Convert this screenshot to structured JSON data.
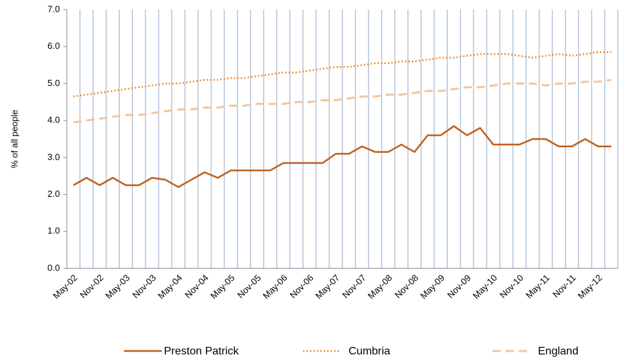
{
  "chart_data": {
    "type": "line",
    "y_label": "% of all people",
    "categories": [
      "May-02",
      null,
      "Nov-02",
      null,
      "May-03",
      null,
      "Nov-03",
      null,
      "May-04",
      null,
      "Nov-04",
      null,
      "May-05",
      null,
      "Nov-05",
      null,
      "May-06",
      null,
      "Nov-06",
      null,
      "May-07",
      null,
      "Nov-07",
      null,
      "May-08",
      null,
      "Nov-08",
      null,
      "May-09",
      null,
      "Nov-09",
      null,
      "May-10",
      null,
      "Nov-10",
      null,
      "May-11",
      null,
      "Nov-11",
      null,
      "May-12",
      null
    ],
    "series": [
      {
        "name": "Preston Patrick",
        "color": "#c0601c",
        "dash": "solid",
        "values": [
          2.25,
          2.45,
          2.25,
          2.45,
          2.25,
          2.25,
          2.45,
          2.4,
          2.2,
          2.4,
          2.6,
          2.45,
          2.65,
          2.65,
          2.65,
          2.65,
          2.85,
          2.85,
          2.85,
          2.85,
          3.1,
          3.1,
          3.3,
          3.15,
          3.15,
          3.35,
          3.15,
          3.6,
          3.6,
          3.85,
          3.6,
          3.8,
          3.35,
          3.35,
          3.35,
          3.5,
          3.5,
          3.3,
          3.3,
          3.5,
          3.3,
          3.3
        ]
      },
      {
        "name": "Cumbria",
        "color": "#f08a2c",
        "dash": "dotted",
        "values": [
          4.65,
          4.7,
          4.75,
          4.8,
          4.85,
          4.9,
          4.95,
          5.0,
          5.0,
          5.05,
          5.1,
          5.1,
          5.15,
          5.15,
          5.2,
          5.25,
          5.3,
          5.3,
          5.35,
          5.4,
          5.45,
          5.45,
          5.5,
          5.55,
          5.55,
          5.6,
          5.6,
          5.65,
          5.7,
          5.7,
          5.75,
          5.8,
          5.8,
          5.8,
          5.75,
          5.7,
          5.75,
          5.8,
          5.75,
          5.8,
          5.85,
          5.85
        ]
      },
      {
        "name": "England",
        "color": "#f5c49a",
        "dash": "dashed",
        "values": [
          3.95,
          4.0,
          4.05,
          4.1,
          4.15,
          4.15,
          4.2,
          4.25,
          4.3,
          4.3,
          4.35,
          4.35,
          4.4,
          4.4,
          4.45,
          4.45,
          4.45,
          4.5,
          4.5,
          4.55,
          4.55,
          4.6,
          4.65,
          4.65,
          4.7,
          4.7,
          4.75,
          4.8,
          4.8,
          4.85,
          4.9,
          4.9,
          4.95,
          5.0,
          5.0,
          5.0,
          4.95,
          5.0,
          5.0,
          5.05,
          5.05,
          5.1
        ]
      }
    ],
    "ylim": [
      0,
      7
    ],
    "yticks": [
      {
        "value": 0,
        "label": "0.0"
      },
      {
        "value": 1,
        "label": "1.0"
      },
      {
        "value": 2,
        "label": "2.0"
      },
      {
        "value": 3,
        "label": "3.0"
      },
      {
        "value": 4,
        "label": "4.0"
      },
      {
        "value": 5,
        "label": "5.0"
      },
      {
        "value": 6,
        "label": "6.0"
      },
      {
        "value": 7,
        "label": "7.0"
      }
    ],
    "grid": "vertical",
    "legend": "bottom"
  }
}
